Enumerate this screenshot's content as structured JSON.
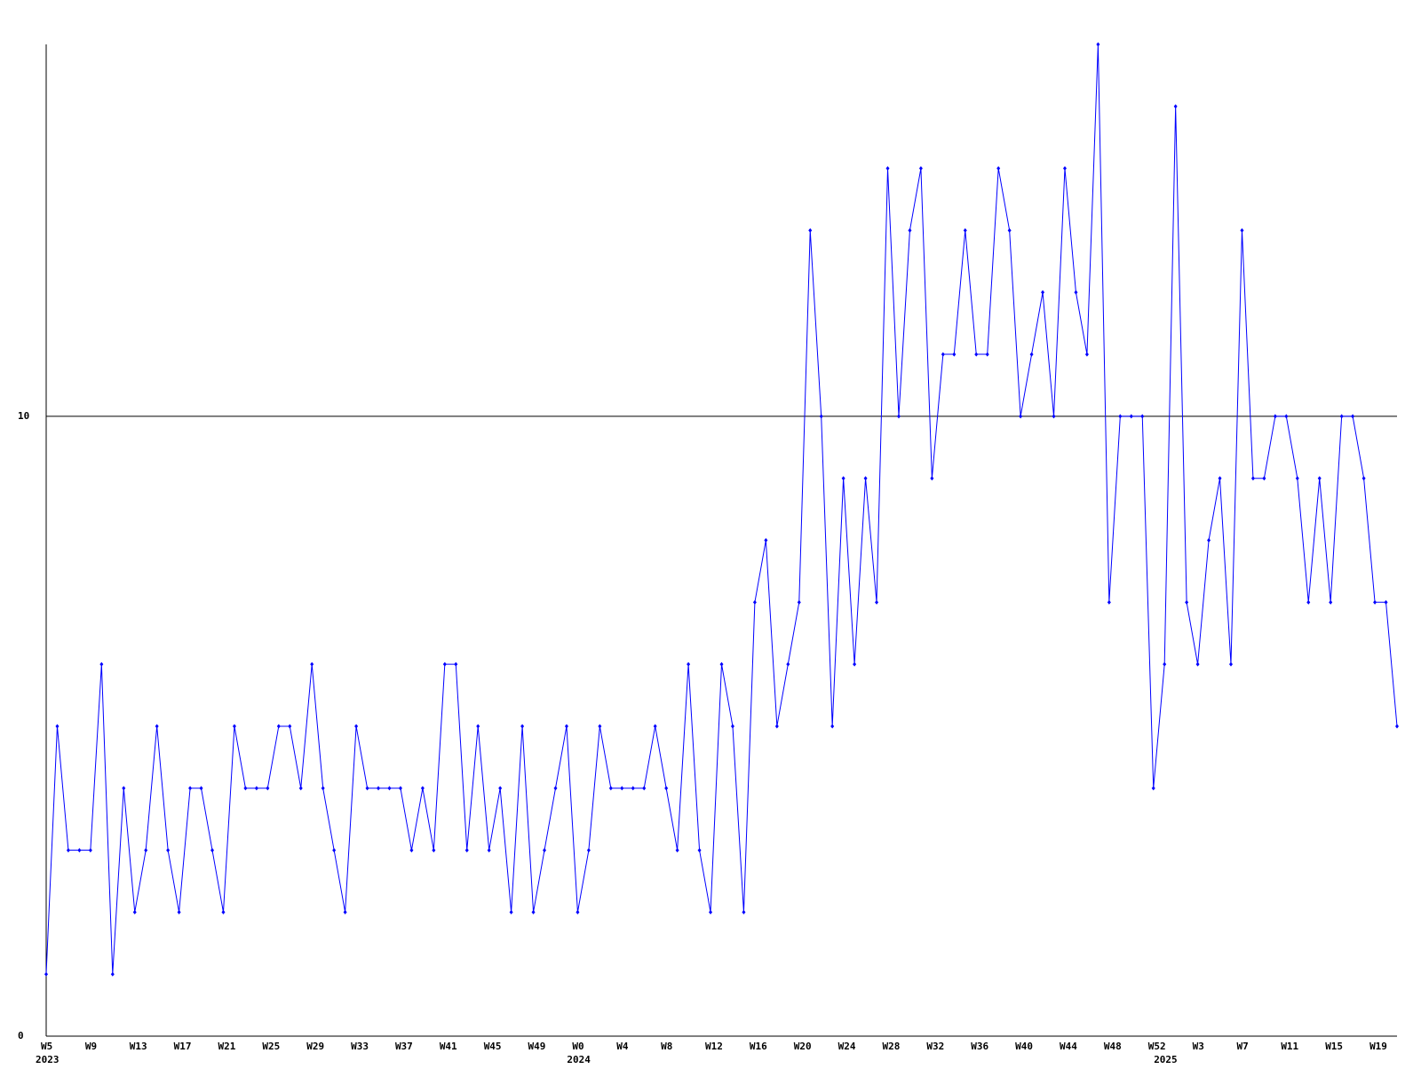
{
  "chart_data": {
    "type": "line",
    "categories": [
      "W5",
      null,
      null,
      null,
      "W9",
      null,
      null,
      null,
      "W13",
      null,
      null,
      null,
      "W17",
      null,
      null,
      null,
      "W21",
      null,
      null,
      null,
      "W25",
      null,
      null,
      null,
      "W29",
      null,
      null,
      null,
      "W33",
      null,
      null,
      null,
      "W37",
      null,
      null,
      null,
      "W41",
      null,
      null,
      null,
      "W45",
      null,
      null,
      null,
      "W49",
      null,
      null,
      null,
      "W0",
      null,
      null,
      null,
      "W4",
      null,
      null,
      null,
      "W8",
      null,
      null,
      null,
      "W12",
      null,
      null,
      null,
      "W16",
      null,
      null,
      null,
      "W20",
      null,
      null,
      null,
      "W24",
      null,
      null,
      null,
      "W28",
      null,
      null,
      null,
      "W32",
      null,
      null,
      null,
      "W36",
      null,
      null,
      null,
      "W40",
      null,
      null,
      null,
      "W44",
      null,
      null,
      null,
      "W48",
      null,
      null,
      null,
      "W52",
      null,
      null,
      null,
      "W3",
      null,
      null,
      null,
      "W7",
      null,
      null,
      null,
      "W11",
      null,
      null,
      null,
      "W15",
      null,
      null,
      null,
      "W19",
      null,
      null
    ],
    "category_groups": [
      "2023",
      null,
      null,
      null,
      null,
      null,
      null,
      null,
      null,
      null,
      null,
      null,
      null,
      null,
      null,
      null,
      null,
      null,
      null,
      null,
      null,
      null,
      null,
      null,
      null,
      null,
      null,
      null,
      null,
      null,
      null,
      null,
      null,
      null,
      null,
      null,
      null,
      null,
      null,
      null,
      null,
      null,
      null,
      null,
      null,
      null,
      null,
      null,
      "2024",
      null,
      null,
      null,
      null,
      null,
      null,
      null,
      null,
      null,
      null,
      null,
      null,
      null,
      null,
      null,
      null,
      null,
      null,
      null,
      null,
      null,
      null,
      null,
      null,
      null,
      null,
      null,
      null,
      null,
      null,
      null,
      null,
      null,
      null,
      null,
      null,
      null,
      null,
      null,
      null,
      null,
      null,
      null,
      null,
      null,
      null,
      null,
      null,
      null,
      null,
      null,
      null,
      "2025",
      null,
      null,
      null,
      null,
      null,
      null,
      null,
      null,
      null,
      null,
      null,
      null,
      null,
      null,
      null,
      null,
      null,
      null,
      null,
      null,
      null
    ],
    "series": [
      {
        "color": "#0000ff",
        "values": [
          1,
          5,
          3,
          3,
          3,
          6,
          1,
          4,
          2,
          3,
          5,
          3,
          2,
          4,
          4,
          3,
          2,
          5,
          4,
          4,
          4,
          5,
          5,
          4,
          6,
          4,
          3,
          2,
          5,
          4,
          4,
          4,
          4,
          3,
          4,
          3,
          6,
          6,
          3,
          5,
          3,
          4,
          2,
          5,
          2,
          3,
          4,
          5,
          2,
          3,
          5,
          4,
          4,
          4,
          4,
          5,
          4,
          3,
          6,
          3,
          2,
          6,
          5,
          2,
          7,
          8,
          5,
          6,
          7,
          13,
          10,
          5,
          9,
          6,
          9,
          7,
          14,
          10,
          13,
          14,
          9,
          11,
          11,
          13,
          11,
          11,
          14,
          13,
          10,
          11,
          12,
          10,
          14,
          12,
          11,
          16,
          7,
          10,
          10,
          10,
          4,
          6,
          15,
          7,
          6,
          8,
          9,
          6,
          13,
          9,
          9,
          10,
          10,
          9,
          7,
          9,
          7,
          10,
          10,
          9,
          7,
          7,
          5
        ]
      }
    ],
    "ylim": [
      0,
      16
    ],
    "yticks": [
      0,
      10
    ],
    "grid": true
  }
}
